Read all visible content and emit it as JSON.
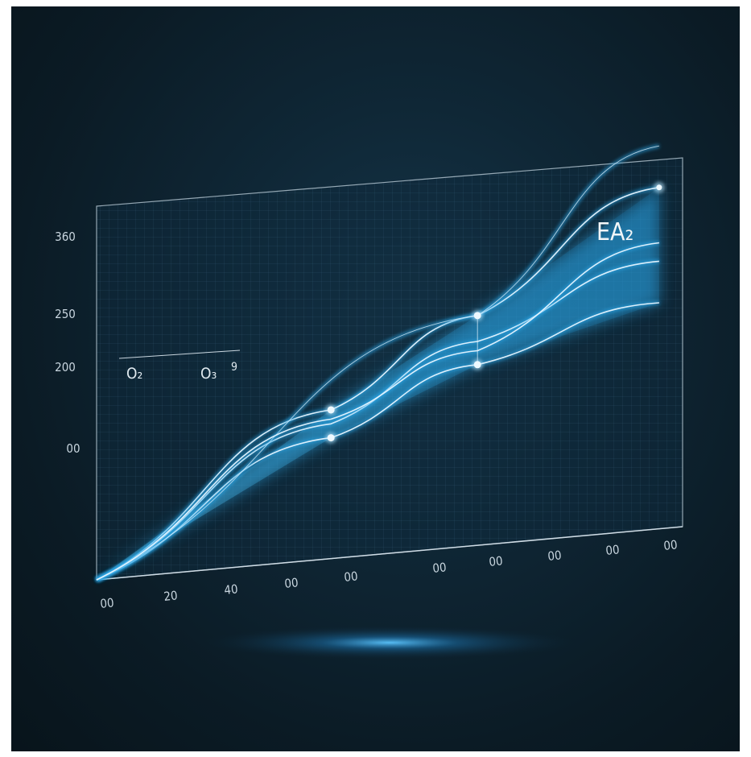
{
  "chart_data": {
    "type": "line",
    "title": "EA₂",
    "y_tick_labels": [
      "360",
      "250",
      "200",
      "00"
    ],
    "x_tick_labels": [
      "00",
      "20",
      "40",
      "00",
      "00",
      "00",
      "00",
      "00",
      "00",
      "00"
    ],
    "legend": {
      "placement": "top-left",
      "entries": [
        "O₂",
        "O₃",
        "9"
      ]
    },
    "grid": true,
    "series": [
      {
        "values": [
          [
            0,
            0
          ],
          [
            4,
            160
          ],
          [
            6.5,
            248
          ],
          [
            9.6,
            370
          ]
        ]
      },
      {
        "values": [
          [
            0,
            0
          ],
          [
            4,
            130
          ],
          [
            6.5,
            195
          ],
          [
            9.6,
            245
          ]
        ]
      },
      {
        "values": [
          [
            0,
            0
          ],
          [
            4,
            145
          ],
          [
            6.5,
            220
          ],
          [
            9.6,
            290
          ]
        ]
      },
      {
        "values": [
          [
            0,
            0
          ],
          [
            6.5,
            248
          ],
          [
            9.6,
            415
          ]
        ]
      },
      {
        "values": [
          [
            0,
            0
          ],
          [
            4,
            150
          ],
          [
            6.5,
            210
          ],
          [
            9.6,
            310
          ]
        ]
      }
    ],
    "colors": {
      "line": "#e8f6ff",
      "glow": "#2aa6e6",
      "axis": "#c9d6df"
    }
  }
}
